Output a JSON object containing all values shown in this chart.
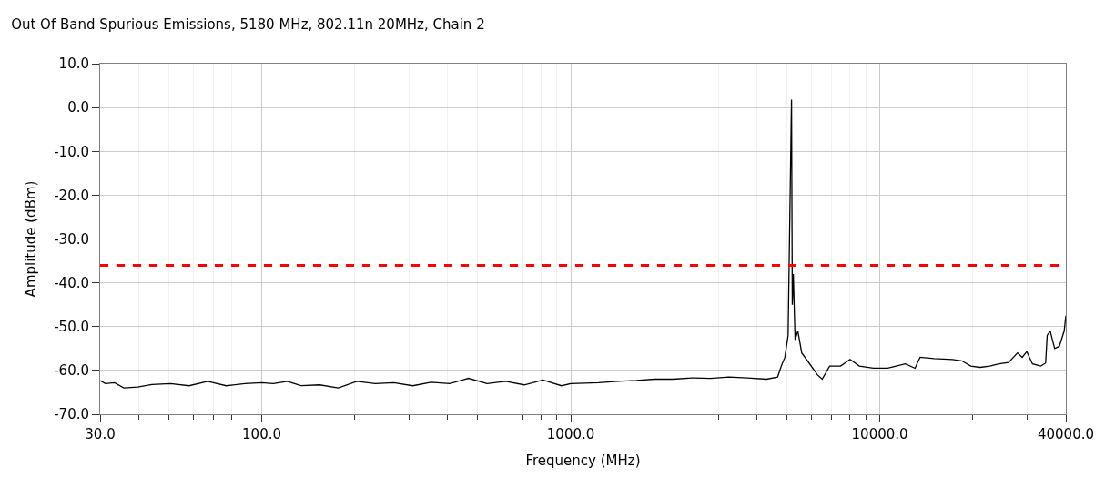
{
  "chart_data": {
    "type": "line",
    "title": "Out Of Band Spurious Emissions, 5180 MHz, 802.11n 20MHz, Chain 2",
    "xlabel": "Frequency (MHz)",
    "ylabel": "Amplitude (dBm)",
    "log": "x",
    "grid": true,
    "marker": "none",
    "line_style": "solid",
    "xlim": [
      30,
      40000
    ],
    "ylim": [
      -70,
      10
    ],
    "xticks": [
      {
        "value": 30,
        "label": "30.0"
      },
      {
        "value": 40,
        "label": null
      },
      {
        "value": 50,
        "label": null
      },
      {
        "value": 60,
        "label": null
      },
      {
        "value": 70,
        "label": null
      },
      {
        "value": 80,
        "label": null
      },
      {
        "value": 90,
        "label": null
      },
      {
        "value": 100,
        "label": "100.0"
      },
      {
        "value": 200,
        "label": null
      },
      {
        "value": 300,
        "label": null
      },
      {
        "value": 400,
        "label": null
      },
      {
        "value": 500,
        "label": null
      },
      {
        "value": 600,
        "label": null
      },
      {
        "value": 700,
        "label": null
      },
      {
        "value": 800,
        "label": null
      },
      {
        "value": 900,
        "label": null
      },
      {
        "value": 1000,
        "label": "1000.0"
      },
      {
        "value": 2000,
        "label": null
      },
      {
        "value": 3000,
        "label": null
      },
      {
        "value": 4000,
        "label": null
      },
      {
        "value": 5000,
        "label": null
      },
      {
        "value": 6000,
        "label": null
      },
      {
        "value": 7000,
        "label": null
      },
      {
        "value": 8000,
        "label": null
      },
      {
        "value": 9000,
        "label": null
      },
      {
        "value": 10000,
        "label": "10000.0"
      },
      {
        "value": 20000,
        "label": null
      },
      {
        "value": 30000,
        "label": null
      },
      {
        "value": 40000,
        "label": "40000.0"
      }
    ],
    "yticks": [
      {
        "value": -70,
        "label": "-70.0"
      },
      {
        "value": -60,
        "label": "-60.0"
      },
      {
        "value": -50,
        "label": "-50.0"
      },
      {
        "value": -40,
        "label": "-40.0"
      },
      {
        "value": -30,
        "label": "-30.0"
      },
      {
        "value": -20,
        "label": "-20.0"
      },
      {
        "value": -10,
        "label": "-10.0"
      },
      {
        "value": 0,
        "label": "0.0"
      },
      {
        "value": 10,
        "label": "10.0"
      }
    ],
    "ref_lines": [
      {
        "axis": "y",
        "value": -36,
        "color": "#ff0000",
        "line_style": "dashed"
      }
    ],
    "series": [
      {
        "color": "#000000",
        "x": [
          30,
          31.2,
          33.4,
          35.8,
          39.7,
          44.1,
          50.7,
          58.2,
          66.8,
          76.8,
          88.2,
          100,
          109,
          121,
          134,
          154,
          177,
          203,
          233,
          268,
          308,
          353,
          406,
          467,
          536,
          615,
          707,
          813,
          933,
          1000,
          1230,
          1420,
          1630,
          1870,
          2140,
          2470,
          2830,
          3250,
          3730,
          4300,
          4670,
          4800,
          4930,
          5050,
          5180,
          5210,
          5250,
          5320,
          5430,
          5590,
          5860,
          6280,
          6510,
          6880,
          7470,
          8010,
          8590,
          9530,
          10600,
          11300,
          12100,
          13000,
          13500,
          15000,
          17200,
          18400,
          19700,
          21100,
          22700,
          24300,
          26100,
          27900,
          28900,
          29900,
          31200,
          33200,
          34400,
          34800,
          35600,
          36800,
          38100,
          39500,
          40000
        ],
        "values": [
          -62.3,
          -63,
          -62.8,
          -64,
          -63.8,
          -63.2,
          -63,
          -63.5,
          -62.5,
          -63.5,
          -63,
          -62.8,
          -63,
          -62.5,
          -63.5,
          -63.3,
          -64,
          -62.5,
          -63,
          -62.8,
          -63.5,
          -62.7,
          -63,
          -61.8,
          -63,
          -62.5,
          -63.3,
          -62.2,
          -63.5,
          -63,
          -62.8,
          -62.5,
          -62.3,
          -62,
          -62,
          -61.7,
          -61.8,
          -61.5,
          -61.7,
          -62,
          -61.5,
          -59,
          -57,
          -52,
          1.8,
          -45,
          -38,
          -53,
          -51,
          -56,
          -58,
          -61,
          -62,
          -59,
          -59,
          -57.5,
          -59,
          -59.5,
          -59.5,
          -59,
          -58.5,
          -59.5,
          -57,
          -57.3,
          -57.5,
          -57.8,
          -59,
          -59.3,
          -59,
          -58.5,
          -58.2,
          -56,
          -57,
          -55.7,
          -58.5,
          -59,
          -58.3,
          -52,
          -51,
          -55,
          -54.5,
          -51,
          -47.5
        ]
      }
    ]
  }
}
